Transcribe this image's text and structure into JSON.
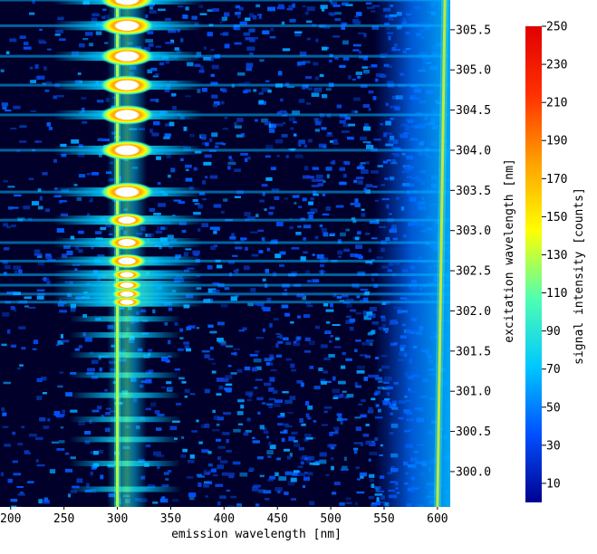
{
  "chart_data": {
    "type": "heatmap",
    "xlabel": "emission wavelength [nm]",
    "ylabel": "excitation wavelength [nm]",
    "colorbar_label": "signal intensity [counts]",
    "xlim": [
      190,
      612
    ],
    "ylim": [
      299.56,
      305.87
    ],
    "color_range": [
      0,
      250
    ],
    "x_ticks": [
      200,
      250,
      300,
      350,
      400,
      450,
      500,
      550,
      600
    ],
    "x_tick_labels": [
      "200",
      "250",
      "300",
      "350",
      "400",
      "450",
      "500",
      "550",
      "600"
    ],
    "y_ticks": [
      300.0,
      300.5,
      301.0,
      301.5,
      302.0,
      302.5,
      303.0,
      303.5,
      304.0,
      304.5,
      305.0,
      305.5
    ],
    "y_tick_labels": [
      "300.0",
      "300.5",
      "301.0",
      "301.5",
      "302.0",
      "302.5",
      "303.0",
      "303.5",
      "304.0",
      "304.5",
      "305.0",
      "305.5"
    ],
    "colorbar_ticks": [
      10,
      30,
      50,
      70,
      90,
      110,
      130,
      150,
      170,
      190,
      210,
      230,
      250
    ],
    "colorbar_tick_labels": [
      "10",
      "30",
      "50",
      "70",
      "90",
      "110",
      "130",
      "150",
      "170",
      "190",
      "210",
      "230",
      "250"
    ],
    "colormap": [
      "#00008f",
      "#0050ff",
      "#00c8ff",
      "#50ffb0",
      "#ffff00",
      "#ffa000",
      "#ff3000",
      "#e00000"
    ],
    "saturated_color": "#ffffff",
    "background_color": "#00002a",
    "features": {
      "scatter_line_x": 300,
      "second_order_line_x_at_top": 607,
      "second_order_line_x_at_bottom": 600,
      "emission_band_x": 309,
      "peaks": [
        {
          "excitation": 305.87,
          "intensity": 250
        },
        {
          "excitation": 305.55,
          "intensity": 250
        },
        {
          "excitation": 305.17,
          "intensity": 250
        },
        {
          "excitation": 304.81,
          "intensity": 250
        },
        {
          "excitation": 304.44,
          "intensity": 250
        },
        {
          "excitation": 304.0,
          "intensity": 250
        },
        {
          "excitation": 303.48,
          "intensity": 250
        },
        {
          "excitation": 303.13,
          "intensity": 240
        },
        {
          "excitation": 302.85,
          "intensity": 240
        },
        {
          "excitation": 302.62,
          "intensity": 240
        },
        {
          "excitation": 302.45,
          "intensity": 230
        },
        {
          "excitation": 302.32,
          "intensity": 230
        },
        {
          "excitation": 302.21,
          "intensity": 220
        },
        {
          "excitation": 302.11,
          "intensity": 210
        }
      ],
      "weak_bands": [
        301.9,
        301.7,
        301.45,
        301.2,
        300.95,
        300.65,
        300.4,
        300.1,
        299.78
      ]
    }
  }
}
